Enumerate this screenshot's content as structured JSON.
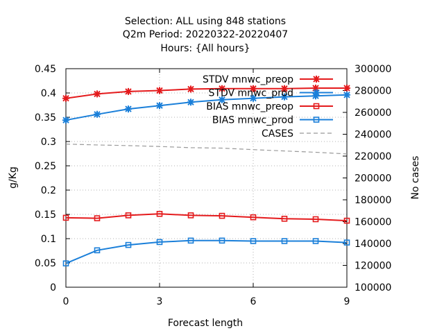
{
  "chart_data": {
    "type": "line",
    "title": [
      "Selection: ALL using   848 stations",
      "Q2m   Period: 20220322-20220407",
      "Hours: {All hours}"
    ],
    "xlabel": "Forecast length",
    "ylabel": "g/Kg",
    "y2label": "No cases",
    "xlim": [
      0,
      9
    ],
    "ylim": [
      0,
      0.45
    ],
    "y2lim": [
      100000,
      300000
    ],
    "xticks": [
      "0",
      "3",
      "6",
      "9"
    ],
    "yticks": [
      "0",
      "0.05",
      "0.1",
      "0.15",
      "0.2",
      "0.25",
      "0.3",
      "0.35",
      "0.4",
      "0.45"
    ],
    "y2ticks": [
      "100000",
      "120000",
      "140000",
      "160000",
      "180000",
      "200000",
      "220000",
      "240000",
      "260000",
      "280000",
      "300000"
    ],
    "grid": true,
    "legend_position": "top-right",
    "x": [
      0,
      1,
      2,
      3,
      4,
      5,
      6,
      7,
      8,
      9
    ],
    "series": [
      {
        "name": "STDV mnwc_preop",
        "color": "#e41a1c",
        "marker": "star",
        "axis": "left",
        "values": [
          0.389,
          0.398,
          0.403,
          0.405,
          0.408,
          0.409,
          0.409,
          0.409,
          0.41,
          0.41
        ]
      },
      {
        "name": "STDV mnwc_prod",
        "color": "#1a7fd9",
        "marker": "star",
        "axis": "left",
        "values": [
          0.344,
          0.356,
          0.367,
          0.374,
          0.381,
          0.386,
          0.389,
          0.392,
          0.394,
          0.396
        ]
      },
      {
        "name": "BIAS mnwc_preop",
        "color": "#e41a1c",
        "marker": "square",
        "axis": "left",
        "values": [
          0.143,
          0.142,
          0.148,
          0.151,
          0.148,
          0.147,
          0.144,
          0.141,
          0.14,
          0.137
        ]
      },
      {
        "name": "BIAS mnwc_prod",
        "color": "#1a7fd9",
        "marker": "square",
        "axis": "left",
        "values": [
          0.049,
          0.076,
          0.087,
          0.093,
          0.096,
          0.096,
          0.095,
          0.095,
          0.095,
          0.092
        ]
      },
      {
        "name": "CASES",
        "color": "#999999",
        "marker": "none",
        "dash": true,
        "axis": "right",
        "values": [
          231000,
          230200,
          229600,
          228800,
          227700,
          227300,
          225900,
          224700,
          223500,
          222000
        ]
      }
    ]
  }
}
